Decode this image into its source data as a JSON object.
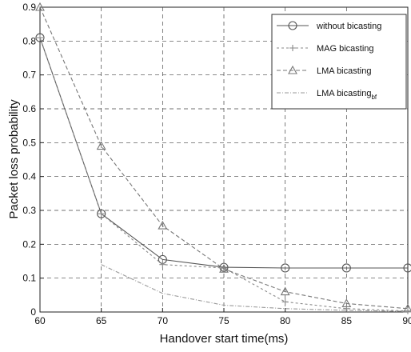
{
  "chart_data": {
    "type": "line",
    "title": "",
    "xlabel": "Handover start time(ms)",
    "ylabel": "Packet loss probability",
    "xlim": [
      60,
      90
    ],
    "ylim": [
      0,
      0.9
    ],
    "x_ticks": [
      "60",
      "65",
      "70",
      "75",
      "80",
      "85",
      "90"
    ],
    "y_ticks": [
      "0",
      "0.1",
      "0.2",
      "0.3",
      "0.4",
      "0.5",
      "0.6",
      "0.7",
      "0.8",
      "0.9"
    ],
    "grid": true,
    "legend_position": "top-right",
    "x": [
      60,
      65,
      70,
      75,
      80,
      85,
      90
    ],
    "series": [
      {
        "name": "without bicasting",
        "values": [
          0.81,
          0.29,
          0.155,
          0.132,
          0.13,
          0.13,
          0.13
        ],
        "color": "#555555",
        "dash": "",
        "marker": "circle"
      },
      {
        "name": "MAG bicasting",
        "values": [
          0.81,
          0.29,
          0.14,
          0.13,
          0.03,
          0.01,
          0.003
        ],
        "color": "#8a8a8a",
        "dash": "3,3",
        "marker": "plus"
      },
      {
        "name": "LMA bicasting",
        "values": [
          0.9,
          0.49,
          0.255,
          0.127,
          0.06,
          0.025,
          0.01
        ],
        "color": "#777777",
        "dash": "5,3",
        "marker": "triangle"
      },
      {
        "name": "LMA bicasting",
        "name_sub": "bf",
        "values": [
          null,
          0.14,
          0.055,
          0.02,
          0.01,
          0.005,
          0.002
        ],
        "color": "#9a9a9a",
        "dash": "5,2,1,2",
        "marker": "none"
      }
    ]
  }
}
